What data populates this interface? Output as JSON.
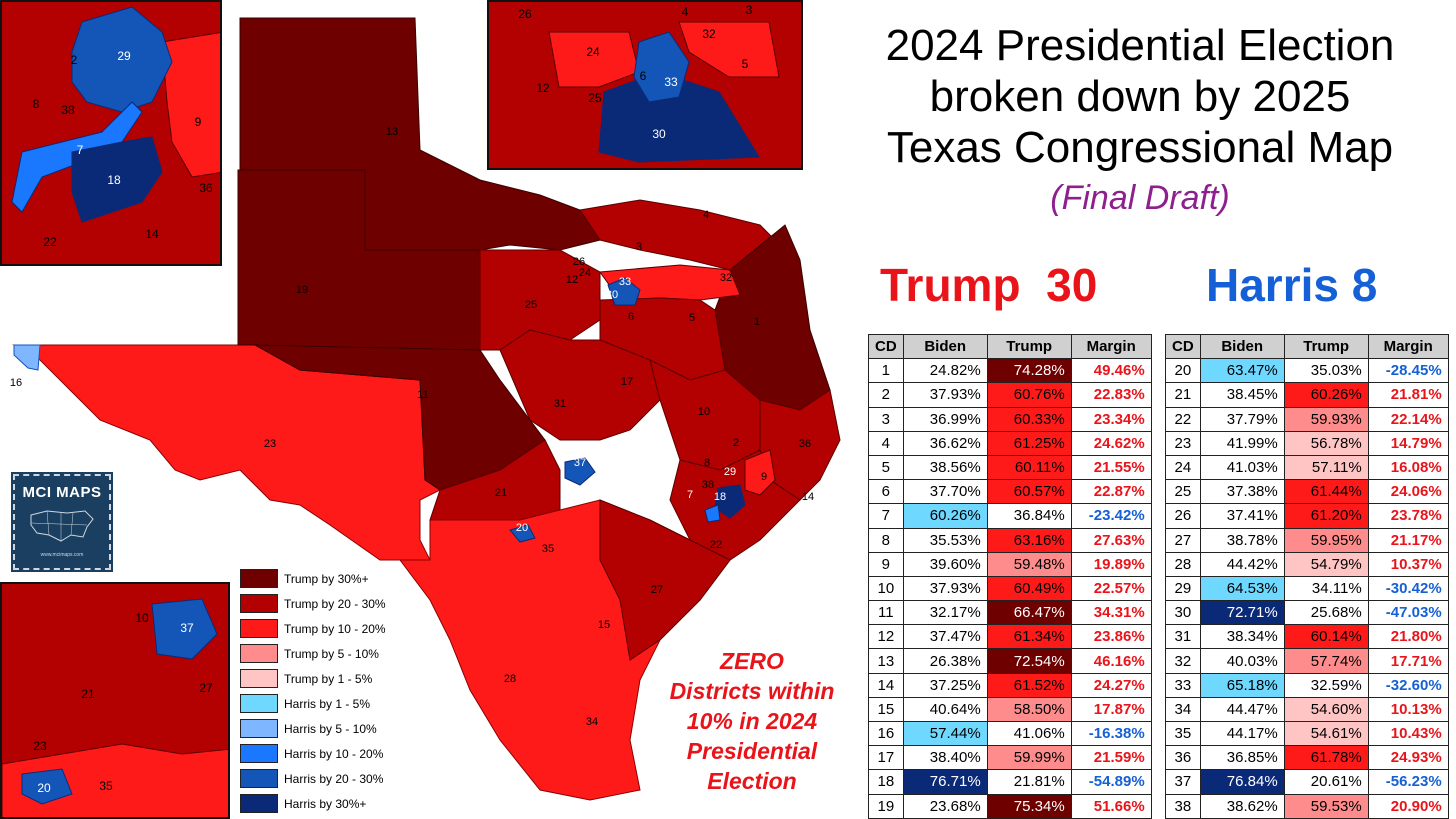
{
  "title_lines": [
    "2024 Presidential Election",
    "broken down by 2025",
    "Texas Congressional Map"
  ],
  "subtitle": "(Final Draft)",
  "tally": {
    "trump": "Trump  30",
    "harris": "Harris 8"
  },
  "note_lines": [
    "ZERO",
    "Districts within",
    "10% in 2024",
    "Presidential",
    "Election"
  ],
  "logo": {
    "title": "MCI MAPS",
    "url": "www.mcimaps.com"
  },
  "legend": [
    {
      "label": "Trump by 30%+",
      "color": "#6e0000"
    },
    {
      "label": "Trump by 20 - 30%",
      "color": "#b30000"
    },
    {
      "label": "Trump by 10 - 20%",
      "color": "#ff1a1a"
    },
    {
      "label": "Trump by 5 - 10%",
      "color": "#ff8c8c"
    },
    {
      "label": "Trump by 1 - 5%",
      "color": "#ffc4c4"
    },
    {
      "label": "Harris by 1 - 5%",
      "color": "#6fd8ff"
    },
    {
      "label": "Harris by 5 - 10%",
      "color": "#7eb6ff"
    },
    {
      "label": "Harris by 10 - 20%",
      "color": "#1a78ff"
    },
    {
      "label": "Harris by 20 - 30%",
      "color": "#1456b8"
    },
    {
      "label": "Harris by 30%+",
      "color": "#0a2a78"
    }
  ],
  "colors": {
    "trump30": "#6e0000",
    "trump20": "#b30000",
    "trump10": "#ff1a1a",
    "trump5": "#ff8c8c",
    "trump1": "#ffc4c4",
    "harris1": "#6fd8ff",
    "harris10": "#1a78ff",
    "harris20": "#1456b8",
    "harris30": "#0a2a78",
    "trump_margin_text": "#e8141a",
    "harris_margin_text": "#1560d6"
  },
  "table": {
    "headers": [
      "CD",
      "Biden",
      "Trump",
      "Margin"
    ],
    "rows": [
      [
        "1",
        "24.82%",
        "74.28%",
        "49.46%"
      ],
      [
        "2",
        "37.93%",
        "60.76%",
        "22.83%"
      ],
      [
        "3",
        "36.99%",
        "60.33%",
        "23.34%"
      ],
      [
        "4",
        "36.62%",
        "61.25%",
        "24.62%"
      ],
      [
        "5",
        "38.56%",
        "60.11%",
        "21.55%"
      ],
      [
        "6",
        "37.70%",
        "60.57%",
        "22.87%"
      ],
      [
        "7",
        "60.26%",
        "36.84%",
        "-23.42%"
      ],
      [
        "8",
        "35.53%",
        "63.16%",
        "27.63%"
      ],
      [
        "9",
        "39.60%",
        "59.48%",
        "19.89%"
      ],
      [
        "10",
        "37.93%",
        "60.49%",
        "22.57%"
      ],
      [
        "11",
        "32.17%",
        "66.47%",
        "34.31%"
      ],
      [
        "12",
        "37.47%",
        "61.34%",
        "23.86%"
      ],
      [
        "13",
        "26.38%",
        "72.54%",
        "46.16%"
      ],
      [
        "14",
        "37.25%",
        "61.52%",
        "24.27%"
      ],
      [
        "15",
        "40.64%",
        "58.50%",
        "17.87%"
      ],
      [
        "16",
        "57.44%",
        "41.06%",
        "-16.38%"
      ],
      [
        "17",
        "38.40%",
        "59.99%",
        "21.59%"
      ],
      [
        "18",
        "76.71%",
        "21.81%",
        "-54.89%"
      ],
      [
        "19",
        "23.68%",
        "75.34%",
        "51.66%"
      ],
      [
        "20",
        "63.47%",
        "35.03%",
        "-28.45%"
      ],
      [
        "21",
        "38.45%",
        "60.26%",
        "21.81%"
      ],
      [
        "22",
        "37.79%",
        "59.93%",
        "22.14%"
      ],
      [
        "23",
        "41.99%",
        "56.78%",
        "14.79%"
      ],
      [
        "24",
        "41.03%",
        "57.11%",
        "16.08%"
      ],
      [
        "25",
        "37.38%",
        "61.44%",
        "24.06%"
      ],
      [
        "26",
        "37.41%",
        "61.20%",
        "23.78%"
      ],
      [
        "27",
        "38.78%",
        "59.95%",
        "21.17%"
      ],
      [
        "28",
        "44.42%",
        "54.79%",
        "10.37%"
      ],
      [
        "29",
        "64.53%",
        "34.11%",
        "-30.42%"
      ],
      [
        "30",
        "72.71%",
        "25.68%",
        "-47.03%"
      ],
      [
        "31",
        "38.34%",
        "60.14%",
        "21.80%"
      ],
      [
        "32",
        "40.03%",
        "57.74%",
        "17.71%"
      ],
      [
        "33",
        "65.18%",
        "32.59%",
        "-32.60%"
      ],
      [
        "34",
        "44.47%",
        "54.60%",
        "10.13%"
      ],
      [
        "35",
        "44.17%",
        "54.61%",
        "10.43%"
      ],
      [
        "36",
        "36.85%",
        "61.78%",
        "24.93%"
      ],
      [
        "37",
        "76.84%",
        "20.61%",
        "-56.23%"
      ],
      [
        "38",
        "38.62%",
        "59.53%",
        "20.90%"
      ]
    ]
  },
  "map_labels": {
    "main": [
      "19",
      "13",
      "4",
      "3",
      "26",
      "12",
      "32",
      "25",
      "6",
      "5",
      "1",
      "17",
      "31",
      "10",
      "11",
      "23",
      "8",
      "2",
      "9",
      "36",
      "14",
      "21",
      "38",
      "22",
      "35",
      "27",
      "15",
      "28",
      "34",
      "16",
      "18",
      "7",
      "30",
      "33",
      "24",
      "37",
      "20",
      "29"
    ],
    "houston_inset": [
      "29",
      "2",
      "8",
      "38",
      "9",
      "7",
      "18",
      "36",
      "22",
      "14"
    ],
    "dallas_inset": [
      "26",
      "4",
      "3",
      "32",
      "24",
      "5",
      "33",
      "12",
      "6",
      "25",
      "30"
    ],
    "austin_inset": [
      "10",
      "37",
      "21",
      "27",
      "23",
      "20",
      "35"
    ]
  }
}
